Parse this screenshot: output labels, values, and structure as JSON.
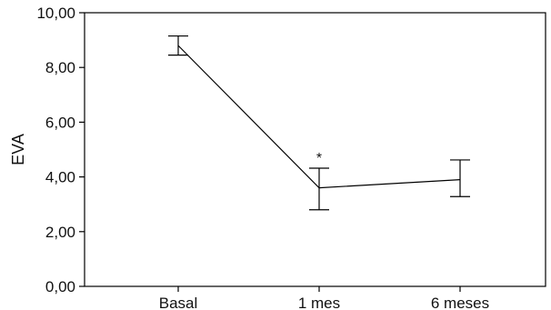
{
  "chart_data": {
    "type": "line",
    "title": "",
    "xlabel": "",
    "ylabel": "EVA",
    "categories": [
      "Basal",
      "1 mes",
      "6 meses"
    ],
    "series": [
      {
        "values": [
          8.8,
          3.6,
          3.9
        ],
        "error_low": [
          8.45,
          2.8,
          3.28
        ],
        "error_high": [
          9.15,
          4.32,
          4.62
        ]
      }
    ],
    "ylim": [
      0,
      10
    ],
    "y_ticks": [
      0,
      2,
      4,
      6,
      8,
      10
    ],
    "y_tick_labels": [
      "0,00",
      "2,00",
      "4,00",
      "6,00",
      "8,00",
      "10,00"
    ],
    "grid": false,
    "legend": "none",
    "annotations": [
      {
        "category": "1 mes",
        "text": "*"
      }
    ]
  }
}
